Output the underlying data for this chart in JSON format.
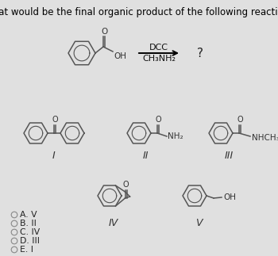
{
  "title": "What would be the final organic product of the following reaction?",
  "title_fontsize": 8.5,
  "bg_color": "#e0e0e0",
  "text_color": "#000000",
  "line_color": "#555555",
  "arrow_label_top": "DCC",
  "arrow_label_bot": "CH₃NH₂",
  "question_mark": "?",
  "choices": [
    "A. V",
    "B. II",
    "C. IV",
    "D. III",
    "E. I"
  ],
  "fig_width": 3.5,
  "fig_height": 3.23,
  "dpi": 100
}
